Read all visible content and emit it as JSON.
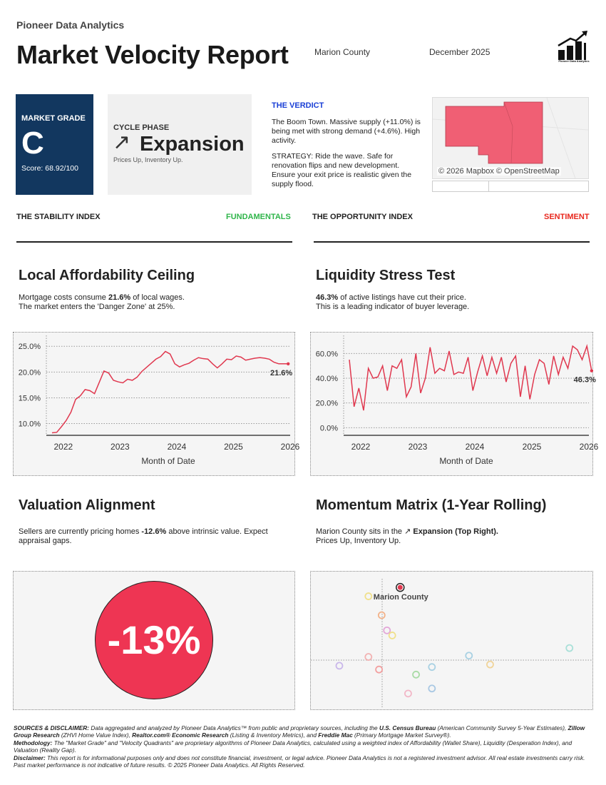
{
  "header": {
    "brand": "Pioneer Data Analytics",
    "title": "Market Velocity Report",
    "county": "Marion County",
    "date": "December 2025",
    "logo_caption": "Pioneer Data Analytics"
  },
  "grade_card": {
    "label": "MARKET GRADE",
    "value": "C",
    "score": "Score: 68.92/100"
  },
  "phase_card": {
    "label": "CYCLE PHASE",
    "arrow": "↗",
    "value": "Expansion",
    "sub": "Prices Up, Inventory Up."
  },
  "verdict": {
    "heading": "THE VERDICT",
    "line1": "The Boom Town. Massive supply (+11.0%) is being met with strong demand (+4.6%). High activity.",
    "line2": "STRATEGY: Ride the wave. Safe for renovation flips and new development. Ensure your exit price is realistic given the supply flood."
  },
  "map": {
    "credit": "© 2026 Mapbox © OpenStreetMap",
    "fill_color": "#f05f74"
  },
  "indices": {
    "stability_title": "THE STABILITY INDEX",
    "stability_tag": "FUNDAMENTALS",
    "stability_color": "#2fb54a",
    "opportunity_title": "THE OPPORTUNITY INDEX",
    "opportunity_tag": "SENTIMENT",
    "opportunity_color": "#e8281e"
  },
  "sections": {
    "afford_title": "Local Affordability Ceiling",
    "afford_text1_pre": "Mortgage costs consume ",
    "afford_text1_bold": "21.6%",
    "afford_text1_post": " of local wages.",
    "afford_text2": "The market enters the 'Danger Zone' at 25%.",
    "liq_title": "Liquidity Stress Test",
    "liq_text1_bold": "46.3%",
    "liq_text1_post": " of active listings have cut their price.",
    "liq_text2": "This is a leading indicator of buyer leverage.",
    "val_title": "Valuation Alignment",
    "val_text_pre": "Sellers are currently pricing homes ",
    "val_text_bold": "-12.6%",
    "val_text_post": " above intrinsic value. Expect appraisal gaps.",
    "mom_title": "Momentum Matrix (1-Year Rolling)",
    "mom_text_pre": "Marion County sits in the ",
    "mom_text_arrow": "↗",
    "mom_text_bold": "Expansion (Top Right).",
    "mom_text2": "Prices Up, Inventory Up."
  },
  "valuation": {
    "value": "-13%",
    "color": "#ee3553"
  },
  "chart_data": [
    {
      "type": "line",
      "name": "affordability",
      "xlabel": "Month of Date",
      "ylabel": "",
      "x_ticks": [
        "2022",
        "2023",
        "2024",
        "2025",
        "2026"
      ],
      "y_ticks": [
        "10.0%",
        "15.0%",
        "20.0%",
        "25.0%"
      ],
      "xlim": [
        2021.7,
        2026.0
      ],
      "ylim": [
        8.0,
        26.0
      ],
      "end_label": "21.6%",
      "color": "#e0384f",
      "x_start": 2021.8,
      "x_step": 0.0833,
      "values": [
        8.2,
        8.3,
        9.4,
        10.6,
        12.2,
        14.7,
        15.4,
        16.6,
        16.4,
        15.8,
        18.0,
        20.2,
        19.8,
        18.4,
        18.1,
        17.9,
        18.6,
        18.4,
        19.0,
        20.1,
        20.9,
        21.7,
        22.5,
        23.0,
        24.0,
        23.5,
        21.6,
        21.0,
        21.4,
        21.7,
        22.3,
        22.8,
        22.6,
        22.5,
        21.6,
        20.8,
        21.6,
        22.5,
        22.4,
        23.1,
        22.9,
        22.3,
        22.5,
        22.7,
        22.8,
        22.7,
        22.5,
        21.9,
        21.6,
        21.6,
        21.6
      ]
    },
    {
      "type": "line",
      "name": "liquidity",
      "xlabel": "Month of Date",
      "ylabel": "",
      "x_ticks": [
        "2022",
        "2023",
        "2024",
        "2025",
        "2026"
      ],
      "y_ticks": [
        "0.0%",
        "20.0%",
        "40.0%",
        "60.0%"
      ],
      "xlim": [
        2021.7,
        2026.0
      ],
      "ylim": [
        -5,
        70
      ],
      "end_label": "46.3%",
      "color": "#e0384f",
      "x_start": 2021.8,
      "x_step": 0.0833,
      "values": [
        55,
        17,
        32,
        14,
        48,
        40,
        41,
        50,
        30,
        50,
        48,
        55,
        25,
        33,
        60,
        28,
        40,
        65,
        44,
        48,
        46,
        62,
        43,
        45,
        44,
        57,
        30,
        45,
        58,
        42,
        57,
        44,
        57,
        37,
        52,
        58,
        25,
        50,
        23,
        43,
        55,
        52,
        35,
        58,
        43,
        57,
        48,
        66,
        63,
        55,
        66,
        46
      ]
    },
    {
      "type": "scatter",
      "name": "momentum",
      "title": "",
      "xlabel": "",
      "ylabel": "",
      "xlim": [
        0,
        100
      ],
      "ylim": [
        0,
        100
      ],
      "highlight_label": "Marion County",
      "points": [
        {
          "x": 30,
          "y": 92,
          "color": "#e0384f",
          "highlight": true
        },
        {
          "x": 18,
          "y": 85,
          "color": "#f0e08c"
        },
        {
          "x": 23,
          "y": 70,
          "color": "#f3b38a"
        },
        {
          "x": 25,
          "y": 58,
          "color": "#e3a6d8"
        },
        {
          "x": 27,
          "y": 54,
          "color": "#f0e08c"
        },
        {
          "x": 18,
          "y": 37,
          "color": "#f2b3b3"
        },
        {
          "x": 7,
          "y": 30,
          "color": "#c9b7ea"
        },
        {
          "x": 22,
          "y": 27,
          "color": "#f2a0a0"
        },
        {
          "x": 36,
          "y": 23,
          "color": "#a9dba6"
        },
        {
          "x": 42,
          "y": 29,
          "color": "#a9d1e3"
        },
        {
          "x": 33,
          "y": 8,
          "color": "#f2b7c7"
        },
        {
          "x": 42,
          "y": 12,
          "color": "#a9c8e3"
        },
        {
          "x": 56,
          "y": 38,
          "color": "#a9d1e3"
        },
        {
          "x": 64,
          "y": 31,
          "color": "#f0d49a"
        },
        {
          "x": 94,
          "y": 44,
          "color": "#a9e0d8"
        }
      ]
    }
  ],
  "disclaimer": {
    "s1_label": "SOURCES & DISCLAIMER:",
    "s1_a": " Data aggregated and analyzed by Pioneer Data Analytics™ from public and proprietary sources, including the ",
    "s1_b": "U.S. Census Bureau",
    "s1_c": " (American Community Survey 5-Year Estimates), ",
    "s1_d": "Zillow Group Research",
    "s1_e": " (ZHVI Home Value Index), ",
    "s1_f": "Realtor.com® Economic Research",
    "s1_g": " (Listing & Inventory Metrics), and ",
    "s1_h": "Freddie Mac",
    "s1_i": " (Primary Mortgage Market Survey®).",
    "s2_label": "Methodology:",
    "s2_text": " The \"Market Grade\" and \"Velocity Quadrants\" are proprietary algorithms of Pioneer Data Analytics, calculated using a weighted index of Affordability (Wallet Share), Liquidity (Desperation Index), and Valuation (Reality Gap).",
    "s3_label": "Disclaimer:",
    "s3_text": " This report is for informational purposes only and does not constitute financial, investment, or legal advice. Pioneer Data Analytics is not a registered investment advisor. All real estate investments carry risk. Past market performance is not indicative of future results. © 2025 Pioneer Data Analytics. All Rights Reserved."
  }
}
